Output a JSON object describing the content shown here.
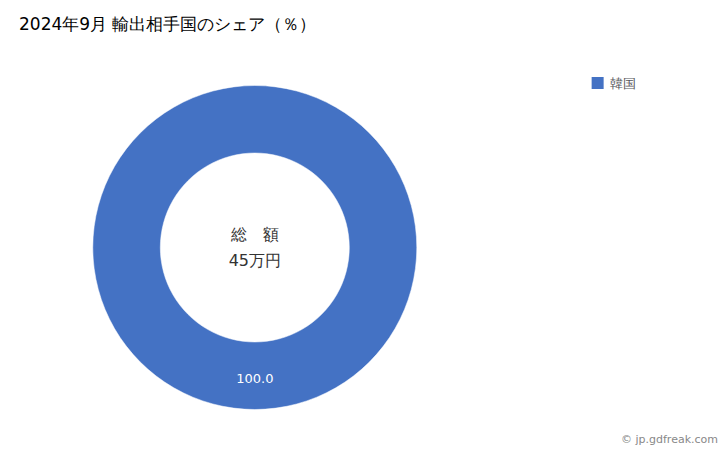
{
  "chart_data": {
    "type": "pie",
    "title": "2024年9月 輸出相手国のシェア（％）",
    "categories": [
      "韓国"
    ],
    "values": [
      100.0
    ],
    "value_labels": [
      "100.0"
    ],
    "colors": [
      "#4472C4"
    ],
    "data_labels": true,
    "legend": "right",
    "annotations": [
      "総　額",
      "45万円"
    ],
    "footer": "© jp.gdfreak.com"
  }
}
